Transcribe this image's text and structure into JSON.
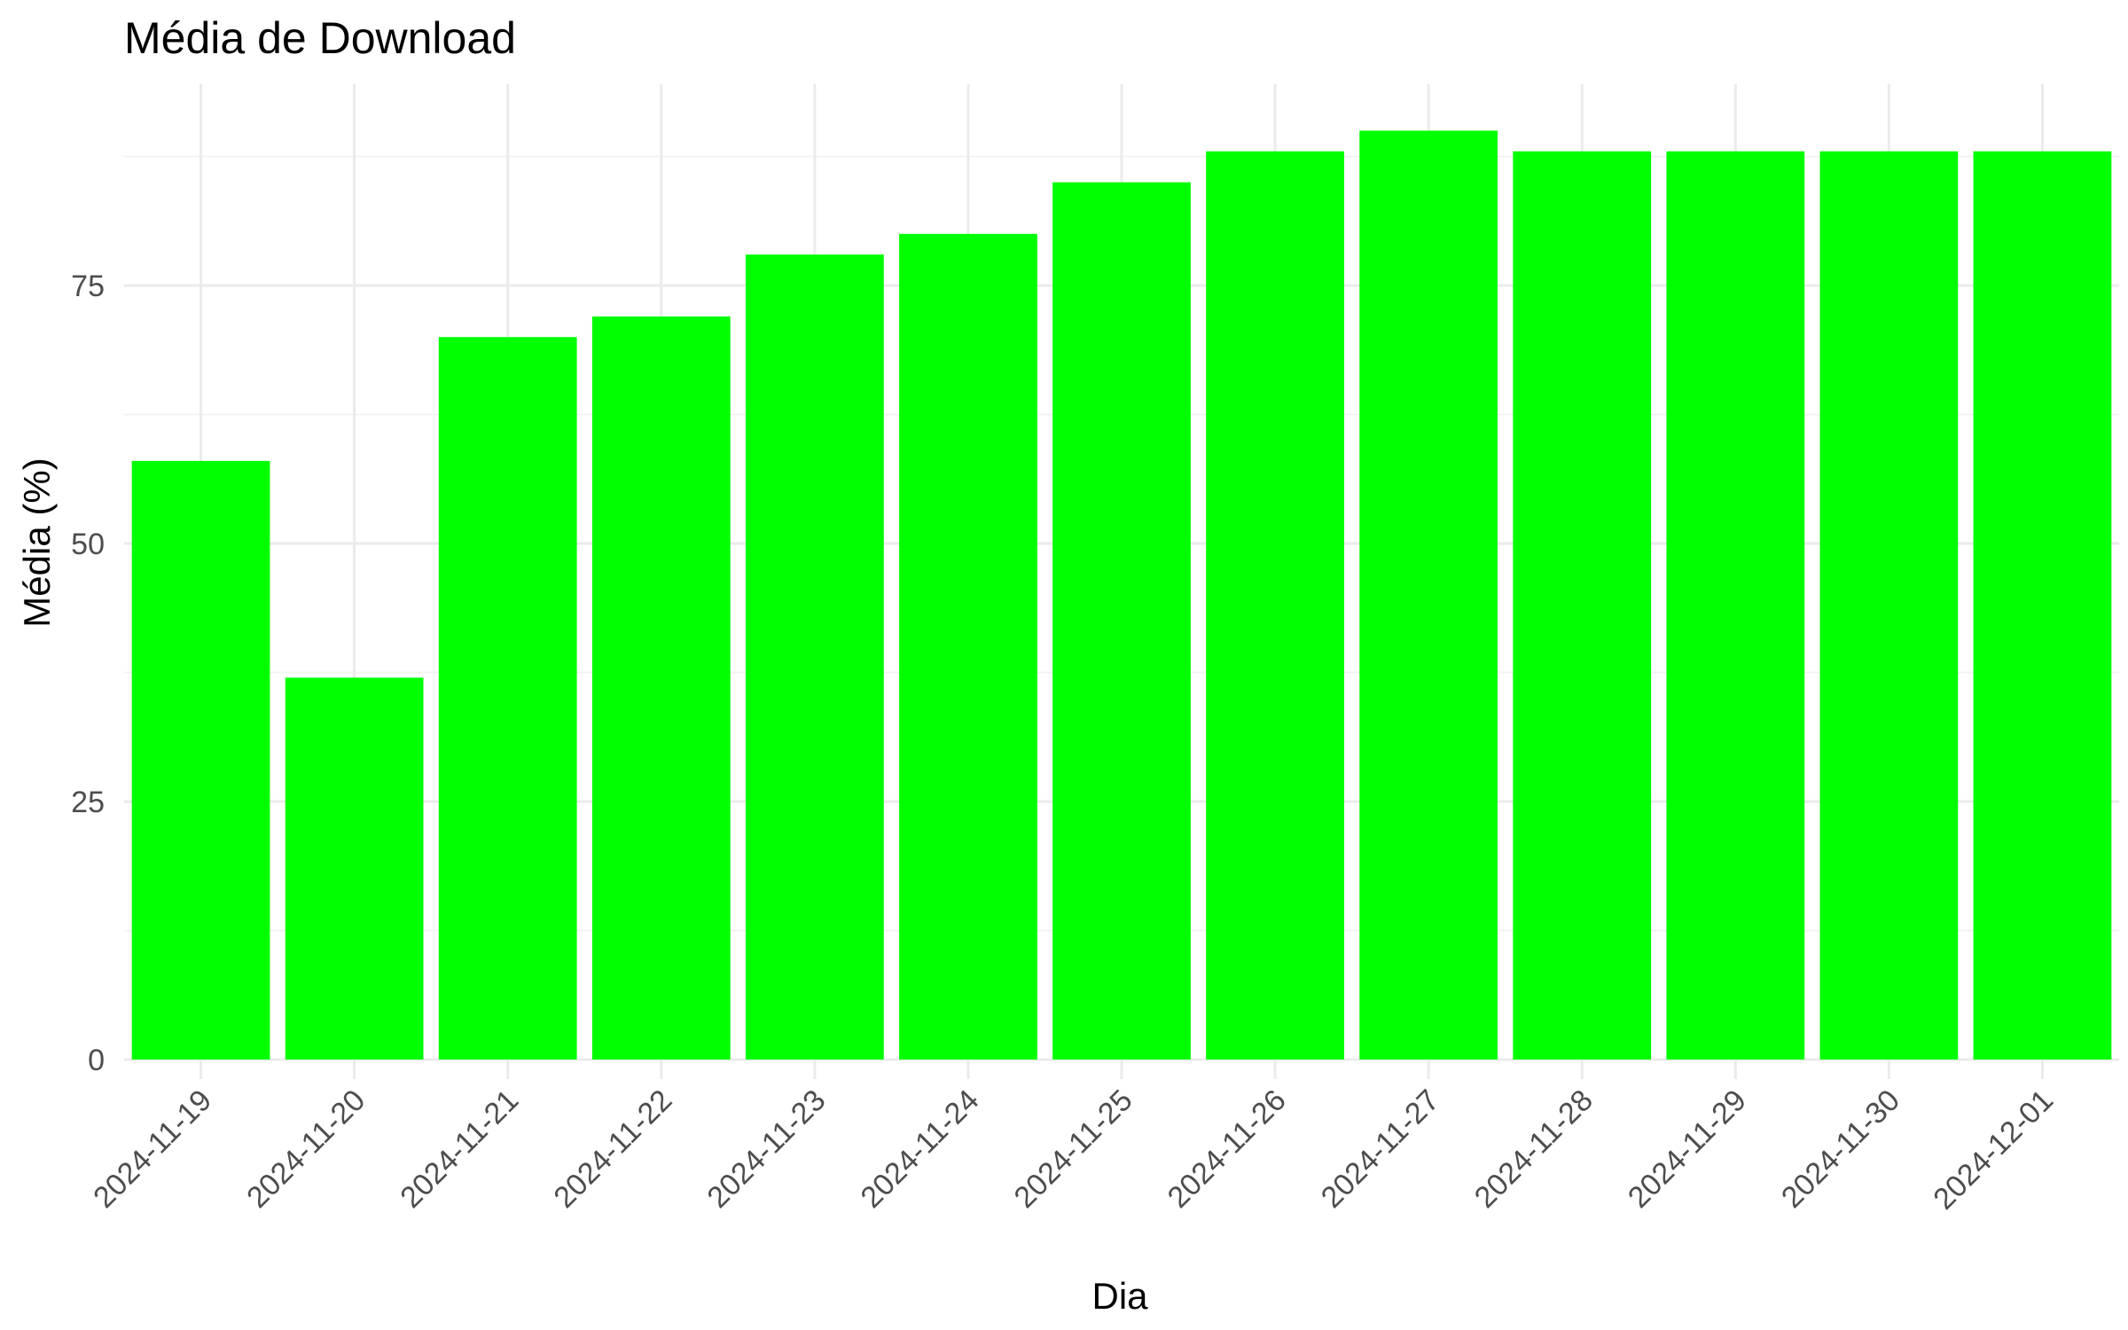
{
  "chart_data": {
    "type": "bar",
    "title": "Média de Download",
    "xlabel": "Dia",
    "ylabel": "Média (%)",
    "categories": [
      "2024-11-19",
      "2024-11-20",
      "2024-11-21",
      "2024-11-22",
      "2024-11-23",
      "2024-11-24",
      "2024-11-25",
      "2024-11-26",
      "2024-11-27",
      "2024-11-28",
      "2024-11-29",
      "2024-11-30",
      "2024-12-01"
    ],
    "values": [
      58,
      37,
      70,
      72,
      78,
      80,
      85,
      88,
      90,
      88,
      88,
      88,
      88
    ],
    "ylim": [
      0,
      94.5
    ],
    "yticks": [
      0,
      25,
      50,
      75
    ],
    "bar_color": "#00ff00",
    "grid": true,
    "legend": "none"
  }
}
